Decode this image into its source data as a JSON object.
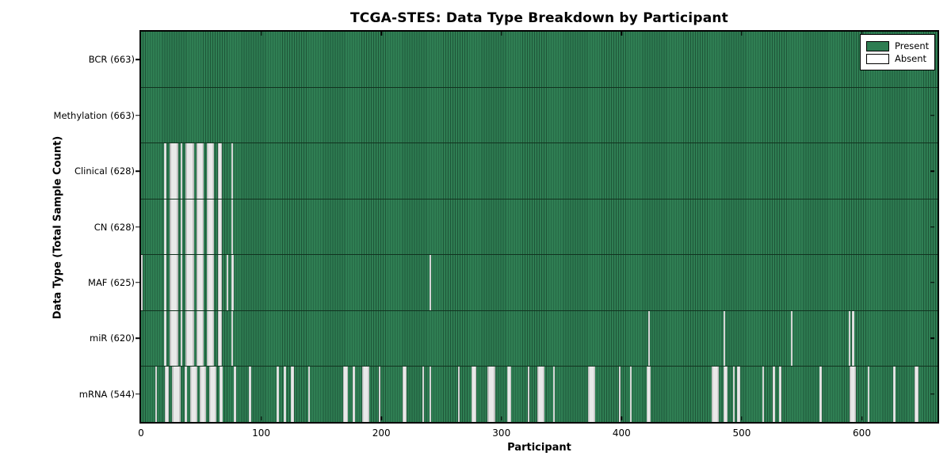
{
  "title": "TCGA-STES: Data Type Breakdown by Participant",
  "legend": {
    "present_label": "Present",
    "absent_label": "Absent"
  },
  "chart_data": {
    "type": "heatmap",
    "title": "TCGA-STES: Data Type Breakdown by Participant",
    "xlabel": "Participant",
    "ylabel": "Data Type (Total Sample Count)",
    "legend_position": "upper right",
    "x_range": [
      0,
      663
    ],
    "x_ticks": [
      0,
      100,
      200,
      300,
      400,
      500,
      600
    ],
    "n_participants": 663,
    "colors": {
      "present": "#2e7d52",
      "absent": "#e9e9e9",
      "cell_edge": "#1e5638",
      "frame": "#000000"
    },
    "rows": [
      {
        "label": "BCR (663)",
        "data_type": "BCR",
        "total": 663,
        "absent_ranges": []
      },
      {
        "label": "Methylation (663)",
        "data_type": "Methylation",
        "total": 663,
        "absent_ranges": []
      },
      {
        "label": "Clinical (628)",
        "data_type": "Clinical",
        "total": 628,
        "absent_ranges": [
          [
            19,
            21
          ],
          [
            24,
            31
          ],
          [
            33,
            34
          ],
          [
            37,
            44
          ],
          [
            46,
            52
          ],
          [
            55,
            61
          ],
          [
            64,
            67
          ],
          [
            75,
            76
          ]
        ]
      },
      {
        "label": "CN (628)",
        "data_type": "CN",
        "total": 628,
        "absent_ranges": [
          [
            19,
            21
          ],
          [
            24,
            31
          ],
          [
            33,
            34
          ],
          [
            37,
            44
          ],
          [
            46,
            52
          ],
          [
            55,
            61
          ],
          [
            64,
            67
          ],
          [
            75,
            76
          ]
        ]
      },
      {
        "label": "MAF (625)",
        "data_type": "MAF",
        "total": 625,
        "absent_ranges": [
          [
            0,
            1
          ],
          [
            19,
            21
          ],
          [
            24,
            31
          ],
          [
            33,
            34
          ],
          [
            37,
            44
          ],
          [
            46,
            52
          ],
          [
            55,
            61
          ],
          [
            64,
            67
          ],
          [
            71,
            72
          ],
          [
            75,
            77
          ],
          [
            240,
            241
          ]
        ]
      },
      {
        "label": "miR (620)",
        "data_type": "miR",
        "total": 620,
        "absent_ranges": [
          [
            19,
            21
          ],
          [
            24,
            31
          ],
          [
            33,
            34
          ],
          [
            37,
            44
          ],
          [
            46,
            52
          ],
          [
            55,
            61
          ],
          [
            64,
            67
          ],
          [
            75,
            76
          ],
          [
            422,
            423
          ],
          [
            485,
            486
          ],
          [
            541,
            542
          ],
          [
            589,
            590
          ],
          [
            592,
            593
          ]
        ]
      },
      {
        "label": "mRNA (544)",
        "data_type": "mRNA",
        "total": 544,
        "absent_ranges": [
          [
            12,
            13
          ],
          [
            20,
            23
          ],
          [
            26,
            33
          ],
          [
            36,
            38
          ],
          [
            41,
            47
          ],
          [
            49,
            54
          ],
          [
            57,
            63
          ],
          [
            65,
            68
          ],
          [
            77,
            79
          ],
          [
            90,
            91
          ],
          [
            113,
            115
          ],
          [
            119,
            120
          ],
          [
            125,
            127
          ],
          [
            139,
            140
          ],
          [
            168,
            172
          ],
          [
            176,
            178
          ],
          [
            184,
            190
          ],
          [
            198,
            199
          ],
          [
            218,
            221
          ],
          [
            234,
            235
          ],
          [
            240,
            241
          ],
          [
            264,
            265
          ],
          [
            275,
            279
          ],
          [
            288,
            295
          ],
          [
            305,
            308
          ],
          [
            322,
            323
          ],
          [
            330,
            336
          ],
          [
            343,
            344
          ],
          [
            372,
            378
          ],
          [
            398,
            399
          ],
          [
            407,
            408
          ],
          [
            421,
            424
          ],
          [
            475,
            481
          ],
          [
            485,
            488
          ],
          [
            493,
            494
          ],
          [
            496,
            499
          ],
          [
            517,
            518
          ],
          [
            526,
            527
          ],
          [
            531,
            533
          ],
          [
            565,
            566
          ],
          [
            590,
            595
          ],
          [
            605,
            606
          ],
          [
            626,
            628
          ],
          [
            644,
            647
          ]
        ]
      }
    ]
  }
}
